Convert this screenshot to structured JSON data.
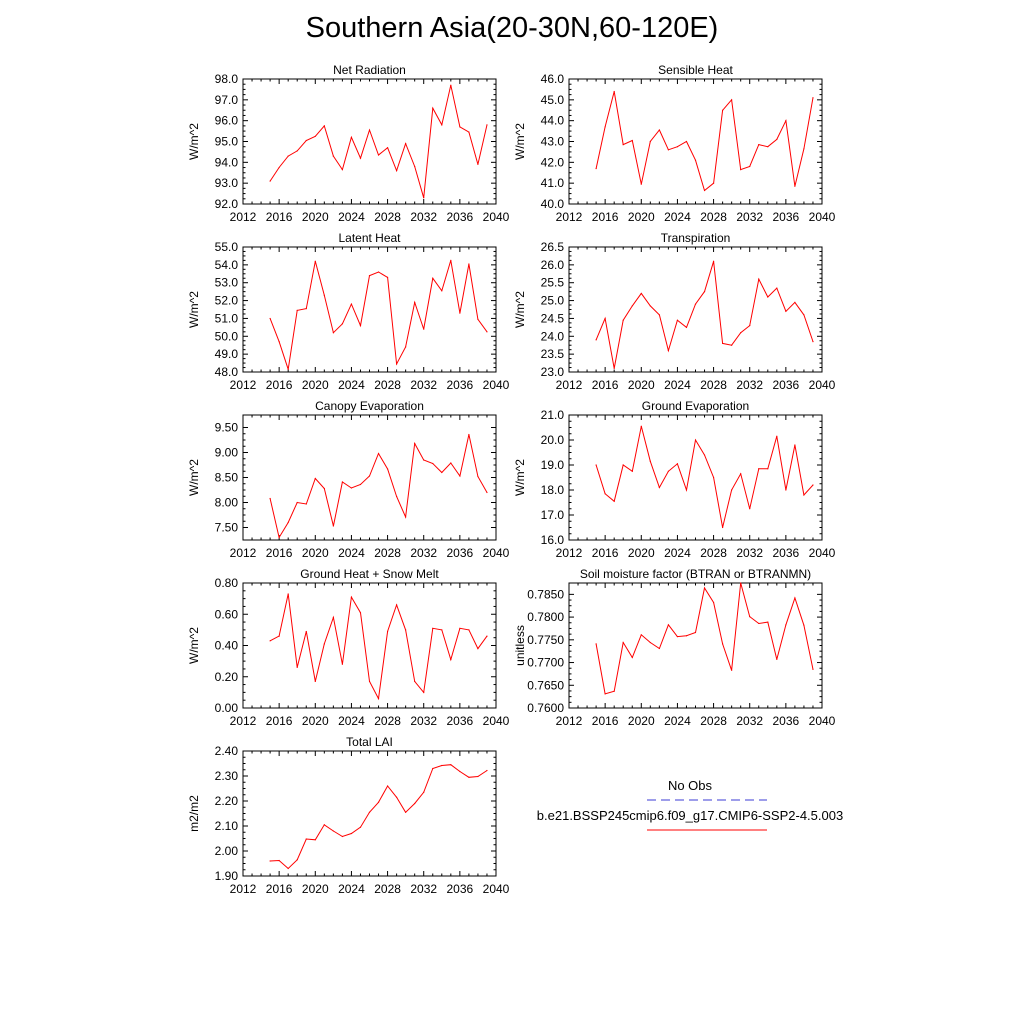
{
  "figure": {
    "title": "Southern Asia(20-30N,60-120E)",
    "line_color": "#ff0000",
    "obs_color": "#3b3bd6"
  },
  "legend": {
    "obs_label": "No Obs",
    "model_label": "b.e21.BSSP245cmip6.f09_g17.CMIP6-SSP2-4.5.003"
  },
  "chart_data": [
    {
      "type": "line",
      "title": "Net Radiation",
      "ylabel": "W/m^2",
      "xlim": [
        2012,
        2040
      ],
      "xticks": [
        2012,
        2016,
        2020,
        2024,
        2028,
        2032,
        2036,
        2040
      ],
      "ylim": [
        92.0,
        98.0
      ],
      "yticks": [
        "92.0",
        "93.0",
        "94.0",
        "95.0",
        "96.0",
        "97.0",
        "98.0"
      ],
      "x": [
        2015,
        2016,
        2017,
        2018,
        2019,
        2020,
        2021,
        2022,
        2023,
        2024,
        2025,
        2026,
        2027,
        2028,
        2029,
        2030,
        2031,
        2032,
        2033,
        2034,
        2035,
        2036,
        2037,
        2038,
        2039
      ],
      "y": [
        93.1,
        93.75,
        94.3,
        94.55,
        95.05,
        95.25,
        95.75,
        94.3,
        93.65,
        95.2,
        94.2,
        95.55,
        94.35,
        94.7,
        93.6,
        94.9,
        93.8,
        92.3,
        96.6,
        95.8,
        97.7,
        95.7,
        95.45,
        93.9,
        95.8
      ]
    },
    {
      "type": "line",
      "title": "Sensible Heat",
      "ylabel": "W/m^2",
      "xlim": [
        2012,
        2040
      ],
      "xticks": [
        2012,
        2016,
        2020,
        2024,
        2028,
        2032,
        2036,
        2040
      ],
      "ylim": [
        40.0,
        46.0
      ],
      "yticks": [
        "40.0",
        "41.0",
        "42.0",
        "43.0",
        "44.0",
        "45.0",
        "46.0"
      ],
      "x": [
        2015,
        2016,
        2017,
        2018,
        2019,
        2020,
        2021,
        2022,
        2023,
        2024,
        2025,
        2026,
        2027,
        2028,
        2029,
        2030,
        2031,
        2032,
        2033,
        2034,
        2035,
        2036,
        2037,
        2038,
        2039
      ],
      "y": [
        41.7,
        43.7,
        45.4,
        42.85,
        43.05,
        40.95,
        43.0,
        43.55,
        42.6,
        42.75,
        43.0,
        42.1,
        40.65,
        41.0,
        44.5,
        45.0,
        41.65,
        41.8,
        42.85,
        42.75,
        43.1,
        44.0,
        40.85,
        42.65,
        45.1
      ]
    },
    {
      "type": "line",
      "title": "Latent Heat",
      "ylabel": "W/m^2",
      "xlim": [
        2012,
        2040
      ],
      "xticks": [
        2012,
        2016,
        2020,
        2024,
        2028,
        2032,
        2036,
        2040
      ],
      "ylim": [
        48.0,
        55.0
      ],
      "yticks": [
        "48.0",
        "49.0",
        "50.0",
        "51.0",
        "52.0",
        "53.0",
        "54.0",
        "55.0"
      ],
      "x": [
        2015,
        2016,
        2017,
        2018,
        2019,
        2020,
        2021,
        2022,
        2023,
        2024,
        2025,
        2026,
        2027,
        2028,
        2029,
        2030,
        2031,
        2032,
        2033,
        2034,
        2035,
        2036,
        2037,
        2038,
        2039
      ],
      "y": [
        51.0,
        49.7,
        48.15,
        51.45,
        51.55,
        54.2,
        52.3,
        50.2,
        50.7,
        51.8,
        50.6,
        53.4,
        53.6,
        53.3,
        48.45,
        49.4,
        51.9,
        50.4,
        53.25,
        52.55,
        54.25,
        51.3,
        54.05,
        50.95,
        50.25
      ]
    },
    {
      "type": "line",
      "title": "Transpiration",
      "ylabel": "W/m^2",
      "xlim": [
        2012,
        2040
      ],
      "xticks": [
        2012,
        2016,
        2020,
        2024,
        2028,
        2032,
        2036,
        2040
      ],
      "ylim": [
        23.0,
        26.5
      ],
      "yticks": [
        "23.0",
        "23.5",
        "24.0",
        "24.5",
        "25.0",
        "25.5",
        "26.0",
        "26.5"
      ],
      "x": [
        2015,
        2016,
        2017,
        2018,
        2019,
        2020,
        2021,
        2022,
        2023,
        2024,
        2025,
        2026,
        2027,
        2028,
        2029,
        2030,
        2031,
        2032,
        2033,
        2034,
        2035,
        2036,
        2037,
        2038,
        2039
      ],
      "y": [
        23.9,
        24.5,
        23.1,
        24.45,
        24.85,
        25.2,
        24.85,
        24.6,
        23.6,
        24.45,
        24.25,
        24.9,
        25.25,
        26.1,
        23.8,
        23.75,
        24.1,
        24.3,
        25.6,
        25.1,
        25.35,
        24.7,
        24.95,
        24.6,
        23.85
      ]
    },
    {
      "type": "line",
      "title": "Canopy Evaporation",
      "ylabel": "W/m^2",
      "xlim": [
        2012,
        2040
      ],
      "xticks": [
        2012,
        2016,
        2020,
        2024,
        2028,
        2032,
        2036,
        2040
      ],
      "ylim": [
        7.25,
        9.75
      ],
      "yticks": [
        "7.50",
        "8.00",
        "8.50",
        "9.00",
        "9.50"
      ],
      "ytick_values": [
        7.5,
        8.0,
        8.5,
        9.0,
        9.5
      ],
      "x": [
        2015,
        2016,
        2017,
        2018,
        2019,
        2020,
        2021,
        2022,
        2023,
        2024,
        2025,
        2026,
        2027,
        2028,
        2029,
        2030,
        2031,
        2032,
        2033,
        2034,
        2035,
        2036,
        2037,
        2038,
        2039
      ],
      "y": [
        8.08,
        7.3,
        7.6,
        8.0,
        7.97,
        8.48,
        8.28,
        7.53,
        8.41,
        8.29,
        8.36,
        8.53,
        8.98,
        8.67,
        8.12,
        7.71,
        9.18,
        8.85,
        8.78,
        8.6,
        8.79,
        8.53,
        9.36,
        8.52,
        8.2
      ]
    },
    {
      "type": "line",
      "title": "Ground Evaporation",
      "ylabel": "W/m^2",
      "xlim": [
        2012,
        2040
      ],
      "xticks": [
        2012,
        2016,
        2020,
        2024,
        2028,
        2032,
        2036,
        2040
      ],
      "ylim": [
        16.0,
        21.0
      ],
      "yticks": [
        "16.0",
        "17.0",
        "18.0",
        "19.0",
        "20.0",
        "21.0"
      ],
      "x": [
        2015,
        2016,
        2017,
        2018,
        2019,
        2020,
        2021,
        2022,
        2023,
        2024,
        2025,
        2026,
        2027,
        2028,
        2029,
        2030,
        2031,
        2032,
        2033,
        2034,
        2035,
        2036,
        2037,
        2038,
        2039
      ],
      "y": [
        19.0,
        17.85,
        17.55,
        19.0,
        18.75,
        20.55,
        19.15,
        18.1,
        18.75,
        19.05,
        18.0,
        20.0,
        19.4,
        18.5,
        16.5,
        18.0,
        18.65,
        17.25,
        18.85,
        18.85,
        20.15,
        18.0,
        19.8,
        17.8,
        18.2
      ]
    },
    {
      "type": "line",
      "title": "Ground Heat + Snow Melt",
      "ylabel": "W/m^2",
      "xlim": [
        2012,
        2040
      ],
      "xticks": [
        2012,
        2016,
        2020,
        2024,
        2028,
        2032,
        2036,
        2040
      ],
      "ylim": [
        0.0,
        0.8
      ],
      "yticks": [
        "0.00",
        "0.20",
        "0.40",
        "0.60",
        "0.80"
      ],
      "ytick_values": [
        0.0,
        0.2,
        0.4,
        0.6,
        0.8
      ],
      "x": [
        2015,
        2016,
        2017,
        2018,
        2019,
        2020,
        2021,
        2022,
        2023,
        2024,
        2025,
        2026,
        2027,
        2028,
        2029,
        2030,
        2031,
        2032,
        2033,
        2034,
        2035,
        2036,
        2037,
        2038,
        2039
      ],
      "y": [
        0.43,
        0.46,
        0.73,
        0.26,
        0.49,
        0.17,
        0.41,
        0.58,
        0.28,
        0.71,
        0.61,
        0.17,
        0.06,
        0.49,
        0.66,
        0.5,
        0.17,
        0.1,
        0.51,
        0.5,
        0.31,
        0.51,
        0.5,
        0.38,
        0.46
      ]
    },
    {
      "type": "line",
      "title": "Soil moisture factor (BTRAN or BTRANMN)",
      "ylabel": "unitless",
      "xlim": [
        2012,
        2040
      ],
      "xticks": [
        2012,
        2016,
        2020,
        2024,
        2028,
        2032,
        2036,
        2040
      ],
      "ylim": [
        0.76,
        0.7875
      ],
      "yticks": [
        "0.7600",
        "0.7650",
        "0.7700",
        "0.7750",
        "0.7800",
        "0.7850"
      ],
      "ytick_values": [
        0.76,
        0.765,
        0.77,
        0.775,
        0.78,
        0.785
      ],
      "x": [
        2015,
        2016,
        2017,
        2018,
        2019,
        2020,
        2021,
        2022,
        2023,
        2024,
        2025,
        2026,
        2027,
        2028,
        2029,
        2030,
        2031,
        2032,
        2033,
        2034,
        2035,
        2036,
        2037,
        2038,
        2039
      ],
      "y": [
        0.7741,
        0.7631,
        0.7637,
        0.7744,
        0.7711,
        0.7761,
        0.7744,
        0.7731,
        0.7783,
        0.7757,
        0.7759,
        0.7766,
        0.7864,
        0.7832,
        0.7741,
        0.7683,
        0.7875,
        0.7801,
        0.7786,
        0.7789,
        0.7707,
        0.7783,
        0.7842,
        0.7782,
        0.7685
      ]
    },
    {
      "type": "line",
      "title": "Total LAI",
      "ylabel": "m2/m2",
      "xlim": [
        2012,
        2040
      ],
      "xticks": [
        2012,
        2016,
        2020,
        2024,
        2028,
        2032,
        2036,
        2040
      ],
      "ylim": [
        1.9,
        2.4
      ],
      "yticks": [
        "1.90",
        "2.00",
        "2.10",
        "2.20",
        "2.30",
        "2.40"
      ],
      "ytick_values": [
        1.9,
        2.0,
        2.1,
        2.2,
        2.3,
        2.4
      ],
      "x": [
        2015,
        2016,
        2017,
        2018,
        2019,
        2020,
        2021,
        2022,
        2023,
        2024,
        2025,
        2026,
        2027,
        2028,
        2029,
        2030,
        2031,
        2032,
        2033,
        2034,
        2035,
        2036,
        2037,
        2038,
        2039
      ],
      "y": [
        1.96,
        1.962,
        1.93,
        1.965,
        2.048,
        2.045,
        2.105,
        2.08,
        2.058,
        2.07,
        2.095,
        2.155,
        2.195,
        2.26,
        2.215,
        2.155,
        2.19,
        2.235,
        2.33,
        2.342,
        2.345,
        2.318,
        2.295,
        2.298,
        2.322
      ]
    }
  ]
}
